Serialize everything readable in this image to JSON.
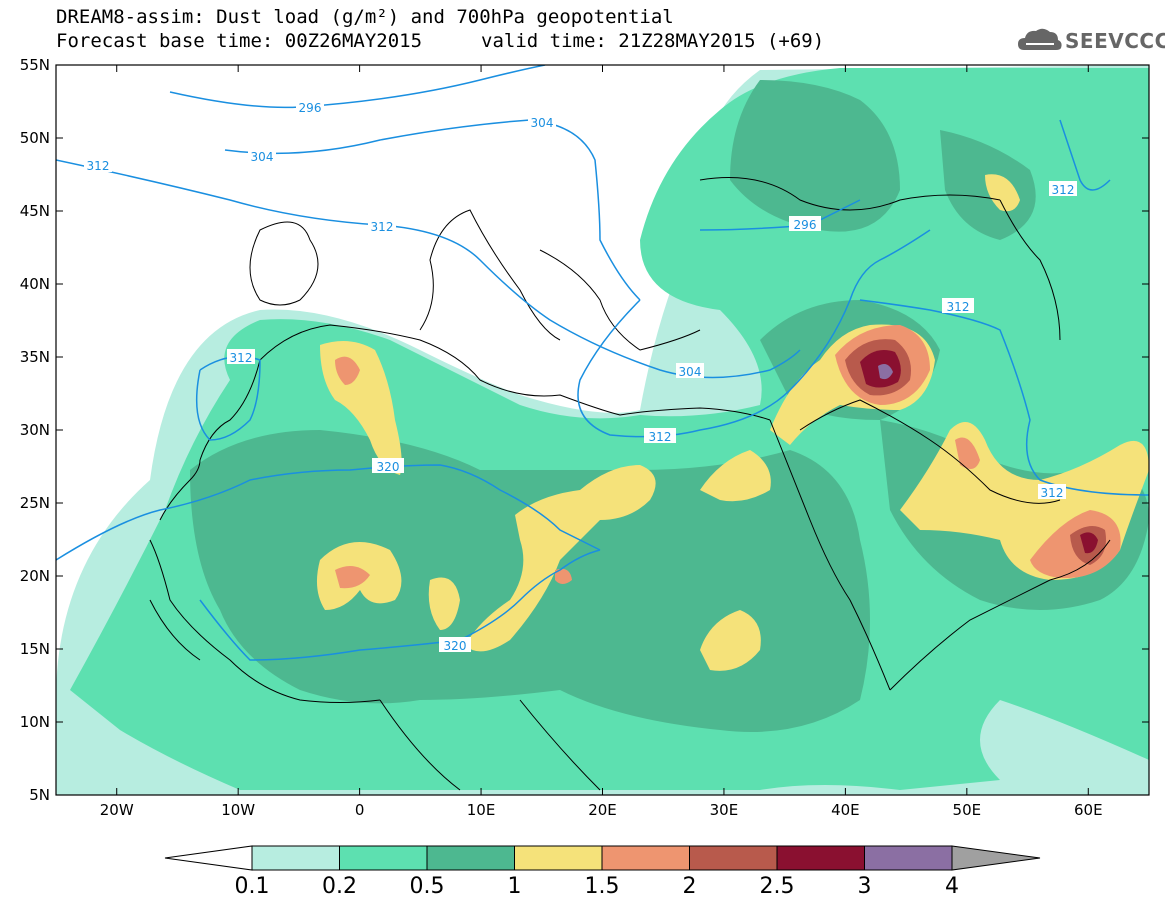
{
  "title": {
    "line1": "DREAM8-assim: Dust load (g/m²) and 700hPa geopotential",
    "base": "Forecast base time: 00Z26MAY2015",
    "valid": "valid time: 21Z28MAY2015 (+69)"
  },
  "logo": {
    "text": "SEEVCCC",
    "icon": "cloud-icon"
  },
  "axes": {
    "lon_labels": [
      "20W",
      "10W",
      "0",
      "10E",
      "20E",
      "30E",
      "40E",
      "50E",
      "60E"
    ],
    "lat_labels": [
      "55N",
      "50N",
      "45N",
      "40N",
      "35N",
      "30N",
      "25N",
      "20N",
      "15N",
      "10N",
      "5N"
    ],
    "lon_range": [
      -25,
      65
    ],
    "lat_range": [
      5,
      55
    ]
  },
  "colorbar": {
    "ticks": [
      "0.1",
      "0.2",
      "0.5",
      "1",
      "1.5",
      "2",
      "2.5",
      "3",
      "4"
    ],
    "colors": [
      "#b7ede0",
      "#5de0b0",
      "#4db890",
      "#f5e27a",
      "#ee9570",
      "#b85a4c",
      "#8a1030",
      "#8b6fa3",
      "#a0a0a0"
    ]
  },
  "contour_labels": {
    "c296a": "296",
    "c296b": "296",
    "c304a": "304",
    "c304b": "304",
    "c304c": "304",
    "c312a": "312",
    "c312b": "312",
    "c312c": "312",
    "c312d": "312",
    "c312e": "312",
    "c312f": "312",
    "c312g": "312",
    "c320a": "320",
    "c320b": "320"
  }
}
